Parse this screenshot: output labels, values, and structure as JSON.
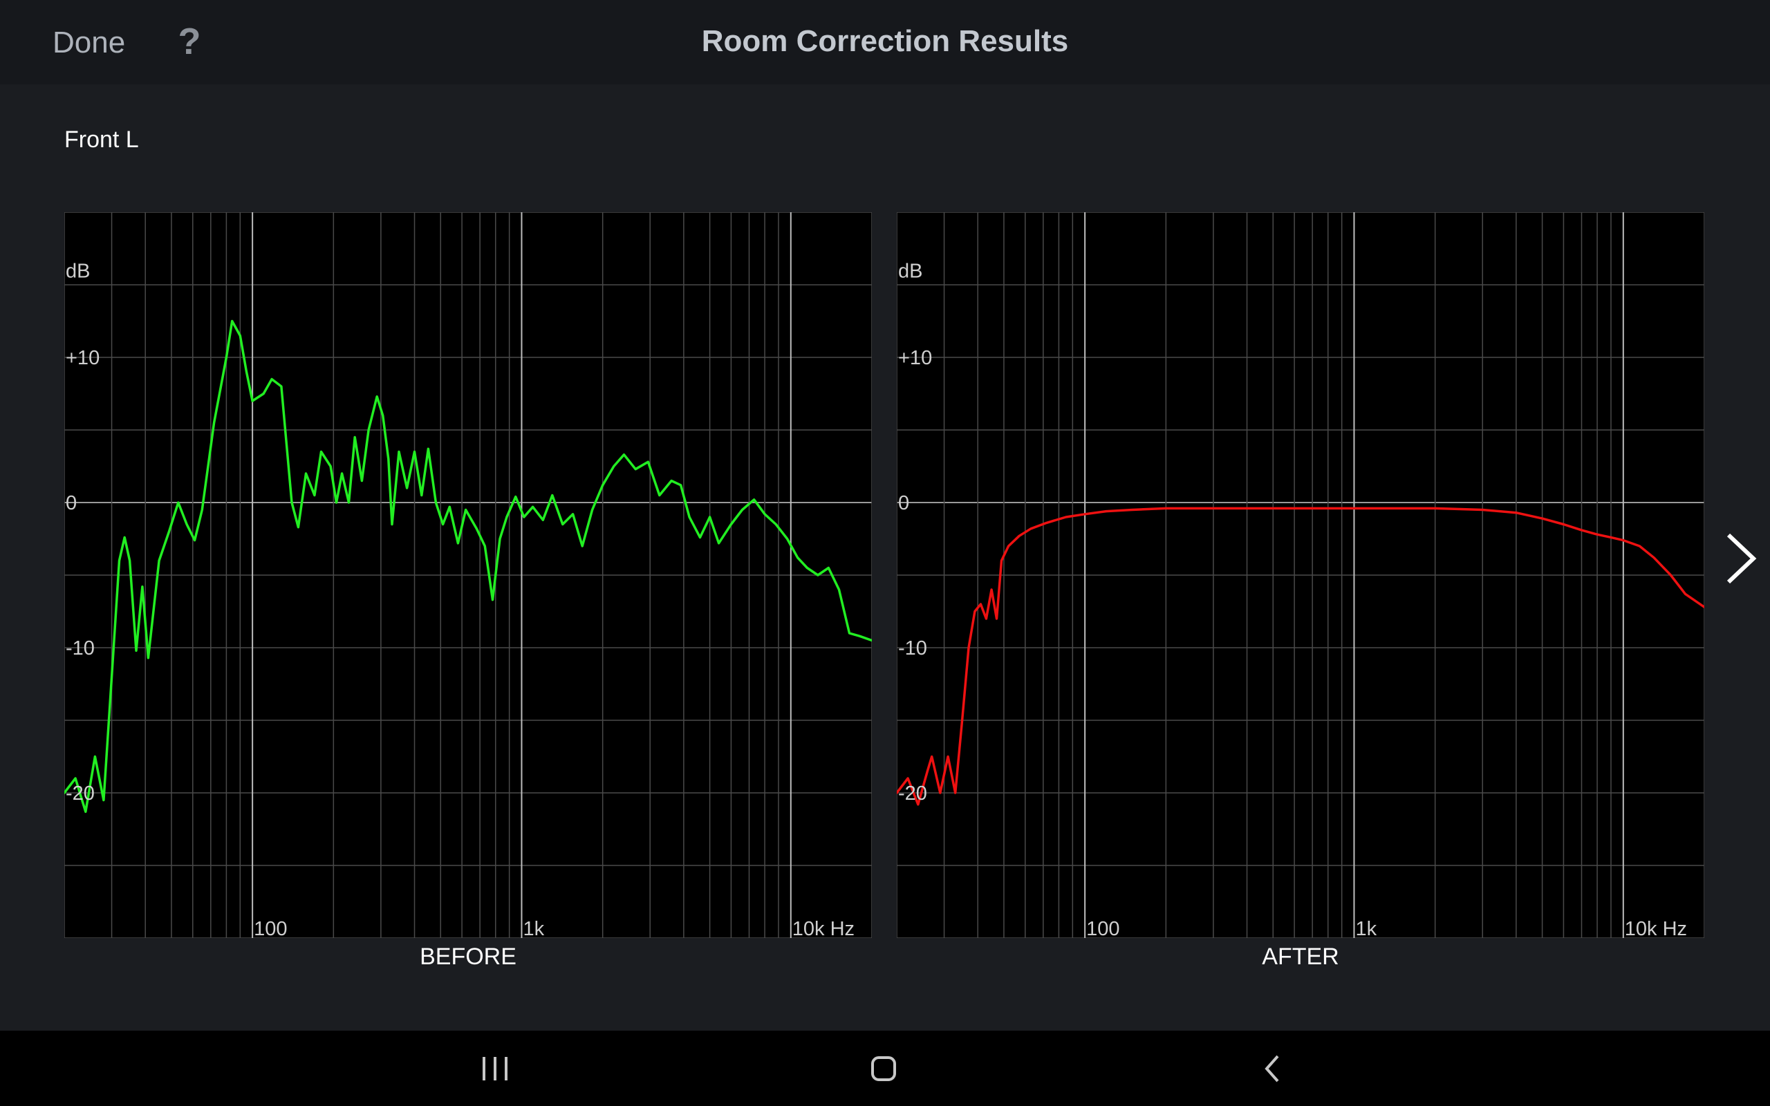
{
  "header": {
    "done_label": "Done",
    "help_label": "?",
    "title": "Room Correction Results"
  },
  "channel": "Front L",
  "colors": {
    "before_curve": "#22ee22",
    "after_curve": "#ee1111",
    "grid": "#4a4a4a",
    "zero_line": "#9a9a9a",
    "plot_background": "#000000"
  },
  "icons": {
    "next": "chevron-right-icon",
    "nav_recent": "recent-apps-icon",
    "nav_home": "home-icon",
    "nav_back": "back-icon"
  },
  "chart_data": [
    {
      "type": "line",
      "caption": "BEFORE",
      "ylabel": "dB",
      "y_tick_labels": [
        "+10",
        "0",
        "-10",
        "-20"
      ],
      "x_tick_labels": [
        "100",
        "1k",
        "10k Hz"
      ],
      "x_scale": "log",
      "xlim": [
        20,
        20000
      ],
      "ylim": [
        -30,
        20
      ],
      "grid": true,
      "series": [
        {
          "values": [
            {
              "x": 20,
              "y": -20.0
            },
            {
              "x": 22,
              "y": -19.0
            },
            {
              "x": 24,
              "y": -21.3
            },
            {
              "x": 26,
              "y": -17.5
            },
            {
              "x": 28,
              "y": -20.5
            },
            {
              "x": 30,
              "y": -12.0
            },
            {
              "x": 32,
              "y": -4.0
            },
            {
              "x": 33.5,
              "y": -2.4
            },
            {
              "x": 35,
              "y": -4.0
            },
            {
              "x": 37,
              "y": -10.2
            },
            {
              "x": 39,
              "y": -5.8
            },
            {
              "x": 41,
              "y": -10.7
            },
            {
              "x": 45,
              "y": -4.0
            },
            {
              "x": 49,
              "y": -2.0
            },
            {
              "x": 53,
              "y": 0.0
            },
            {
              "x": 57,
              "y": -1.5
            },
            {
              "x": 61,
              "y": -2.6
            },
            {
              "x": 65,
              "y": -0.5
            },
            {
              "x": 72,
              "y": 5.5
            },
            {
              "x": 80,
              "y": 10.0
            },
            {
              "x": 84,
              "y": 12.5
            },
            {
              "x": 90,
              "y": 11.5
            },
            {
              "x": 95,
              "y": 9.0
            },
            {
              "x": 100,
              "y": 7.0
            },
            {
              "x": 110,
              "y": 7.5
            },
            {
              "x": 118,
              "y": 8.5
            },
            {
              "x": 128,
              "y": 8.0
            },
            {
              "x": 140,
              "y": 0.0
            },
            {
              "x": 148,
              "y": -1.7
            },
            {
              "x": 158,
              "y": 2.0
            },
            {
              "x": 170,
              "y": 0.5
            },
            {
              "x": 180,
              "y": 3.5
            },
            {
              "x": 195,
              "y": 2.5
            },
            {
              "x": 205,
              "y": 0.0
            },
            {
              "x": 215,
              "y": 2.0
            },
            {
              "x": 228,
              "y": 0.0
            },
            {
              "x": 240,
              "y": 4.5
            },
            {
              "x": 255,
              "y": 1.5
            },
            {
              "x": 270,
              "y": 5.0
            },
            {
              "x": 290,
              "y": 7.3
            },
            {
              "x": 305,
              "y": 6.0
            },
            {
              "x": 320,
              "y": 3.0
            },
            {
              "x": 330,
              "y": -1.5
            },
            {
              "x": 350,
              "y": 3.5
            },
            {
              "x": 375,
              "y": 1.0
            },
            {
              "x": 400,
              "y": 3.5
            },
            {
              "x": 425,
              "y": 0.5
            },
            {
              "x": 450,
              "y": 3.7
            },
            {
              "x": 480,
              "y": 0.0
            },
            {
              "x": 510,
              "y": -1.5
            },
            {
              "x": 540,
              "y": -0.3
            },
            {
              "x": 580,
              "y": -2.8
            },
            {
              "x": 620,
              "y": -0.5
            },
            {
              "x": 680,
              "y": -1.8
            },
            {
              "x": 730,
              "y": -3.0
            },
            {
              "x": 780,
              "y": -6.7
            },
            {
              "x": 830,
              "y": -2.5
            },
            {
              "x": 880,
              "y": -1.0
            },
            {
              "x": 950,
              "y": 0.4
            },
            {
              "x": 1020,
              "y": -1.0
            },
            {
              "x": 1100,
              "y": -0.3
            },
            {
              "x": 1200,
              "y": -1.2
            },
            {
              "x": 1300,
              "y": 0.5
            },
            {
              "x": 1420,
              "y": -1.5
            },
            {
              "x": 1550,
              "y": -0.8
            },
            {
              "x": 1680,
              "y": -3.0
            },
            {
              "x": 1830,
              "y": -0.5
            },
            {
              "x": 2000,
              "y": 1.2
            },
            {
              "x": 2200,
              "y": 2.5
            },
            {
              "x": 2400,
              "y": 3.3
            },
            {
              "x": 2650,
              "y": 2.3
            },
            {
              "x": 2950,
              "y": 2.8
            },
            {
              "x": 3250,
              "y": 0.5
            },
            {
              "x": 3600,
              "y": 1.5
            },
            {
              "x": 3900,
              "y": 1.2
            },
            {
              "x": 4200,
              "y": -1.0
            },
            {
              "x": 4600,
              "y": -2.4
            },
            {
              "x": 5000,
              "y": -1.0
            },
            {
              "x": 5400,
              "y": -2.8
            },
            {
              "x": 6000,
              "y": -1.5
            },
            {
              "x": 6600,
              "y": -0.5
            },
            {
              "x": 7300,
              "y": 0.2
            },
            {
              "x": 8000,
              "y": -0.8
            },
            {
              "x": 8800,
              "y": -1.5
            },
            {
              "x": 9700,
              "y": -2.5
            },
            {
              "x": 10600,
              "y": -3.8
            },
            {
              "x": 11500,
              "y": -4.5
            },
            {
              "x": 12600,
              "y": -5.0
            },
            {
              "x": 13800,
              "y": -4.5
            },
            {
              "x": 15100,
              "y": -6.0
            },
            {
              "x": 16500,
              "y": -9.0
            },
            {
              "x": 18000,
              "y": -9.2
            },
            {
              "x": 20000,
              "y": -9.5
            }
          ]
        }
      ]
    },
    {
      "type": "line",
      "caption": "AFTER",
      "ylabel": "dB",
      "y_tick_labels": [
        "+10",
        "0",
        "-10",
        "-20"
      ],
      "x_tick_labels": [
        "100",
        "1k",
        "10k Hz"
      ],
      "x_scale": "log",
      "xlim": [
        20,
        20000
      ],
      "ylim": [
        -30,
        20
      ],
      "grid": true,
      "series": [
        {
          "values": [
            {
              "x": 20,
              "y": -20.0
            },
            {
              "x": 22,
              "y": -19.0
            },
            {
              "x": 24,
              "y": -20.8
            },
            {
              "x": 26,
              "y": -18.5
            },
            {
              "x": 27,
              "y": -17.5
            },
            {
              "x": 29,
              "y": -20.0
            },
            {
              "x": 31,
              "y": -17.5
            },
            {
              "x": 33,
              "y": -20.0
            },
            {
              "x": 35,
              "y": -15.0
            },
            {
              "x": 37,
              "y": -10.0
            },
            {
              "x": 39,
              "y": -7.5
            },
            {
              "x": 41,
              "y": -7.0
            },
            {
              "x": 43,
              "y": -8.0
            },
            {
              "x": 45,
              "y": -6.0
            },
            {
              "x": 47,
              "y": -8.0
            },
            {
              "x": 49,
              "y": -4.0
            },
            {
              "x": 52,
              "y": -3.0
            },
            {
              "x": 57,
              "y": -2.3
            },
            {
              "x": 63,
              "y": -1.8
            },
            {
              "x": 72,
              "y": -1.4
            },
            {
              "x": 85,
              "y": -1.0
            },
            {
              "x": 100,
              "y": -0.8
            },
            {
              "x": 120,
              "y": -0.6
            },
            {
              "x": 150,
              "y": -0.5
            },
            {
              "x": 200,
              "y": -0.4
            },
            {
              "x": 300,
              "y": -0.4
            },
            {
              "x": 500,
              "y": -0.4
            },
            {
              "x": 800,
              "y": -0.4
            },
            {
              "x": 1200,
              "y": -0.4
            },
            {
              "x": 2000,
              "y": -0.4
            },
            {
              "x": 3000,
              "y": -0.5
            },
            {
              "x": 4000,
              "y": -0.7
            },
            {
              "x": 5000,
              "y": -1.1
            },
            {
              "x": 6000,
              "y": -1.5
            },
            {
              "x": 7000,
              "y": -1.9
            },
            {
              "x": 8000,
              "y": -2.2
            },
            {
              "x": 9000,
              "y": -2.4
            },
            {
              "x": 10000,
              "y": -2.6
            },
            {
              "x": 11500,
              "y": -3.0
            },
            {
              "x": 13000,
              "y": -3.8
            },
            {
              "x": 15000,
              "y": -5.0
            },
            {
              "x": 17000,
              "y": -6.3
            },
            {
              "x": 20000,
              "y": -7.2
            }
          ]
        }
      ]
    }
  ],
  "nav": {
    "recent_glyph": "|||",
    "home_glyph": "◻",
    "back_glyph": "<"
  }
}
